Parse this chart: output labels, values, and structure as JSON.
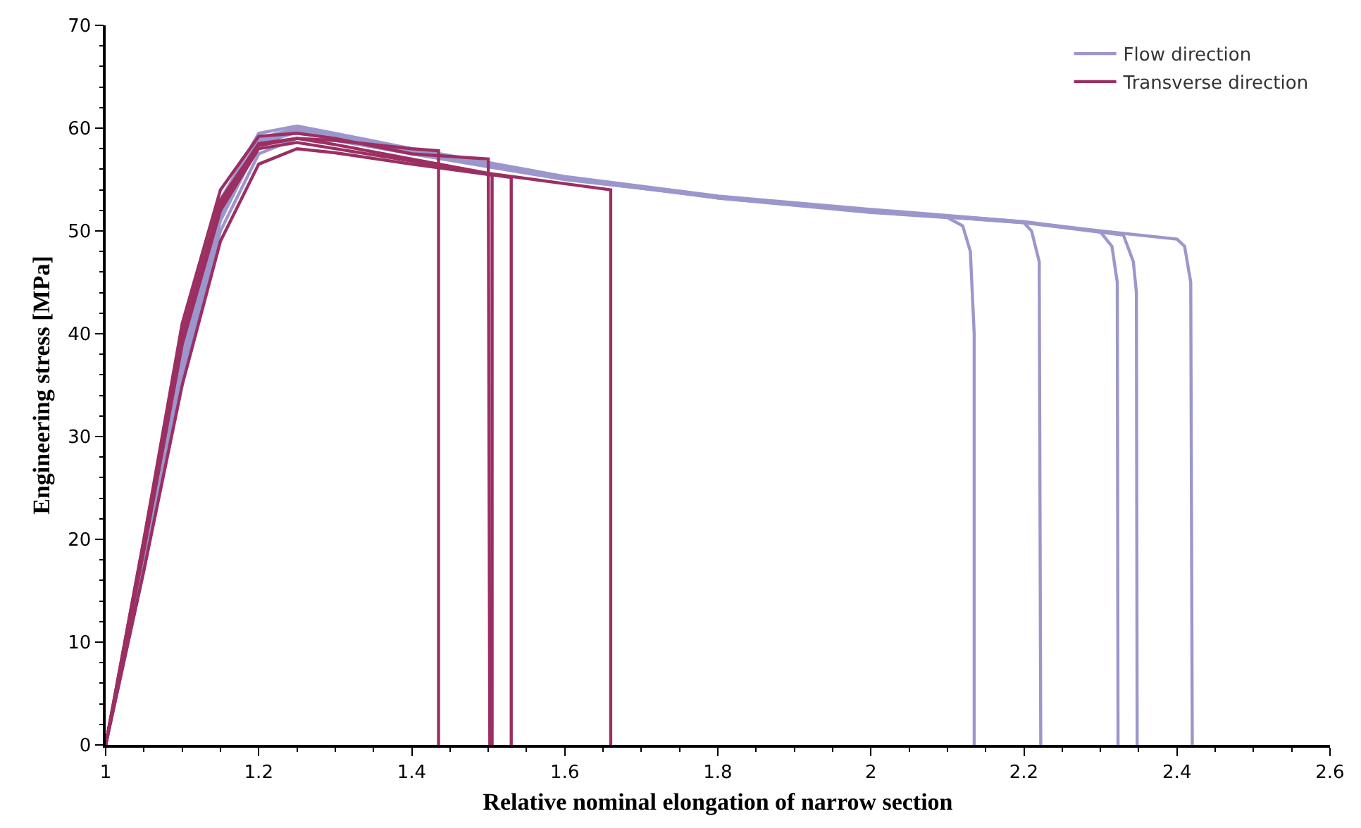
{
  "chart_data": {
    "type": "line",
    "xlabel": "Relative nominal elongation of narrow section",
    "ylabel": "Engineering stress [MPa]",
    "xlim": [
      1,
      2.6
    ],
    "xticks": [
      1,
      1.2,
      1.4,
      1.6,
      1.8,
      2,
      2.2,
      2.4,
      2.6
    ],
    "ylim": [
      0,
      70
    ],
    "yticks": [
      0,
      10,
      20,
      30,
      40,
      50,
      60,
      70
    ],
    "legend": "top right",
    "series": [
      {
        "name": "Flow direction",
        "color": "#9b97cc",
        "x": [
          1,
          1.05,
          1.1,
          1.15,
          1.2,
          1.25,
          1.3,
          1.4,
          1.6,
          1.8,
          2.0,
          2.1,
          2.12,
          2.13,
          2.135,
          2.135
        ],
        "values": [
          0,
          18,
          38,
          52,
          59,
          60,
          59.3,
          57.8,
          55.2,
          53.2,
          51.8,
          51.3,
          50.5,
          48,
          40,
          0
        ]
      },
      {
        "color": "#9b97cc",
        "x": [
          1,
          1.05,
          1.1,
          1.15,
          1.2,
          1.25,
          1.3,
          1.4,
          1.6,
          1.8,
          2.0,
          2.2,
          2.21,
          2.22,
          2.222
        ],
        "values": [
          0,
          17,
          36,
          50,
          57.5,
          59,
          58.8,
          57.5,
          55,
          53.3,
          51.9,
          50.8,
          50,
          47,
          0
        ]
      },
      {
        "color": "#9b97cc",
        "x": [
          1,
          1.05,
          1.1,
          1.15,
          1.2,
          1.25,
          1.3,
          1.4,
          1.6,
          1.8,
          2.0,
          2.2,
          2.3,
          2.315,
          2.322,
          2.323
        ],
        "values": [
          0,
          19,
          39,
          53,
          59.5,
          60.2,
          59.5,
          58,
          55.3,
          53.4,
          52.1,
          50.9,
          49.9,
          48.5,
          45,
          0
        ]
      },
      {
        "color": "#9b97cc",
        "x": [
          1,
          1.05,
          1.1,
          1.15,
          1.2,
          1.25,
          1.3,
          1.4,
          1.6,
          1.8,
          2.0,
          2.2,
          2.33,
          2.343,
          2.347,
          2.348
        ],
        "values": [
          0,
          18,
          37,
          51,
          58.5,
          59.6,
          59.2,
          57.7,
          55.1,
          53.2,
          51.9,
          50.8,
          49.6,
          47,
          44,
          0
        ]
      },
      {
        "color": "#9b97cc",
        "x": [
          1,
          1.05,
          1.1,
          1.15,
          1.2,
          1.25,
          1.3,
          1.4,
          1.6,
          1.8,
          2.0,
          2.2,
          2.3,
          2.4,
          2.41,
          2.418,
          2.42
        ],
        "values": [
          0,
          18,
          37,
          51.5,
          58.8,
          59.8,
          59.3,
          57.8,
          55.2,
          53.3,
          52,
          50.9,
          50,
          49.2,
          48.5,
          45,
          0
        ]
      },
      {
        "name": "Transverse direction",
        "color": "#9b2f62",
        "x": [
          1,
          1.05,
          1.1,
          1.15,
          1.2,
          1.25,
          1.3,
          1.4,
          1.435,
          1.435
        ],
        "values": [
          0,
          20,
          40,
          53,
          58.5,
          59,
          58.8,
          58,
          57.8,
          0
        ]
      },
      {
        "color": "#9b2f62",
        "x": [
          1,
          1.05,
          1.1,
          1.15,
          1.2,
          1.25,
          1.3,
          1.4,
          1.5,
          1.502
        ],
        "values": [
          0,
          20,
          41,
          54,
          59.2,
          59.5,
          59,
          57.5,
          57,
          0
        ]
      },
      {
        "color": "#9b2f62",
        "x": [
          1,
          1.05,
          1.1,
          1.15,
          1.2,
          1.25,
          1.3,
          1.4,
          1.5,
          1.505,
          1.505
        ],
        "values": [
          0,
          17,
          35,
          49,
          56.5,
          58,
          57.6,
          56.5,
          55.5,
          55.4,
          0
        ]
      },
      {
        "color": "#9b2f62",
        "x": [
          1,
          1.05,
          1.1,
          1.15,
          1.2,
          1.25,
          1.3,
          1.4,
          1.5,
          1.53,
          1.53
        ],
        "values": [
          0,
          19,
          39,
          52,
          58,
          58.6,
          58,
          56.8,
          55.5,
          55.2,
          0
        ]
      },
      {
        "color": "#9b2f62",
        "x": [
          1,
          1.05,
          1.1,
          1.15,
          1.2,
          1.25,
          1.3,
          1.4,
          1.5,
          1.6,
          1.66,
          1.66
        ],
        "values": [
          0,
          19,
          39,
          52.5,
          58.3,
          59,
          58.4,
          57,
          55.6,
          54.6,
          54,
          0
        ]
      }
    ]
  }
}
